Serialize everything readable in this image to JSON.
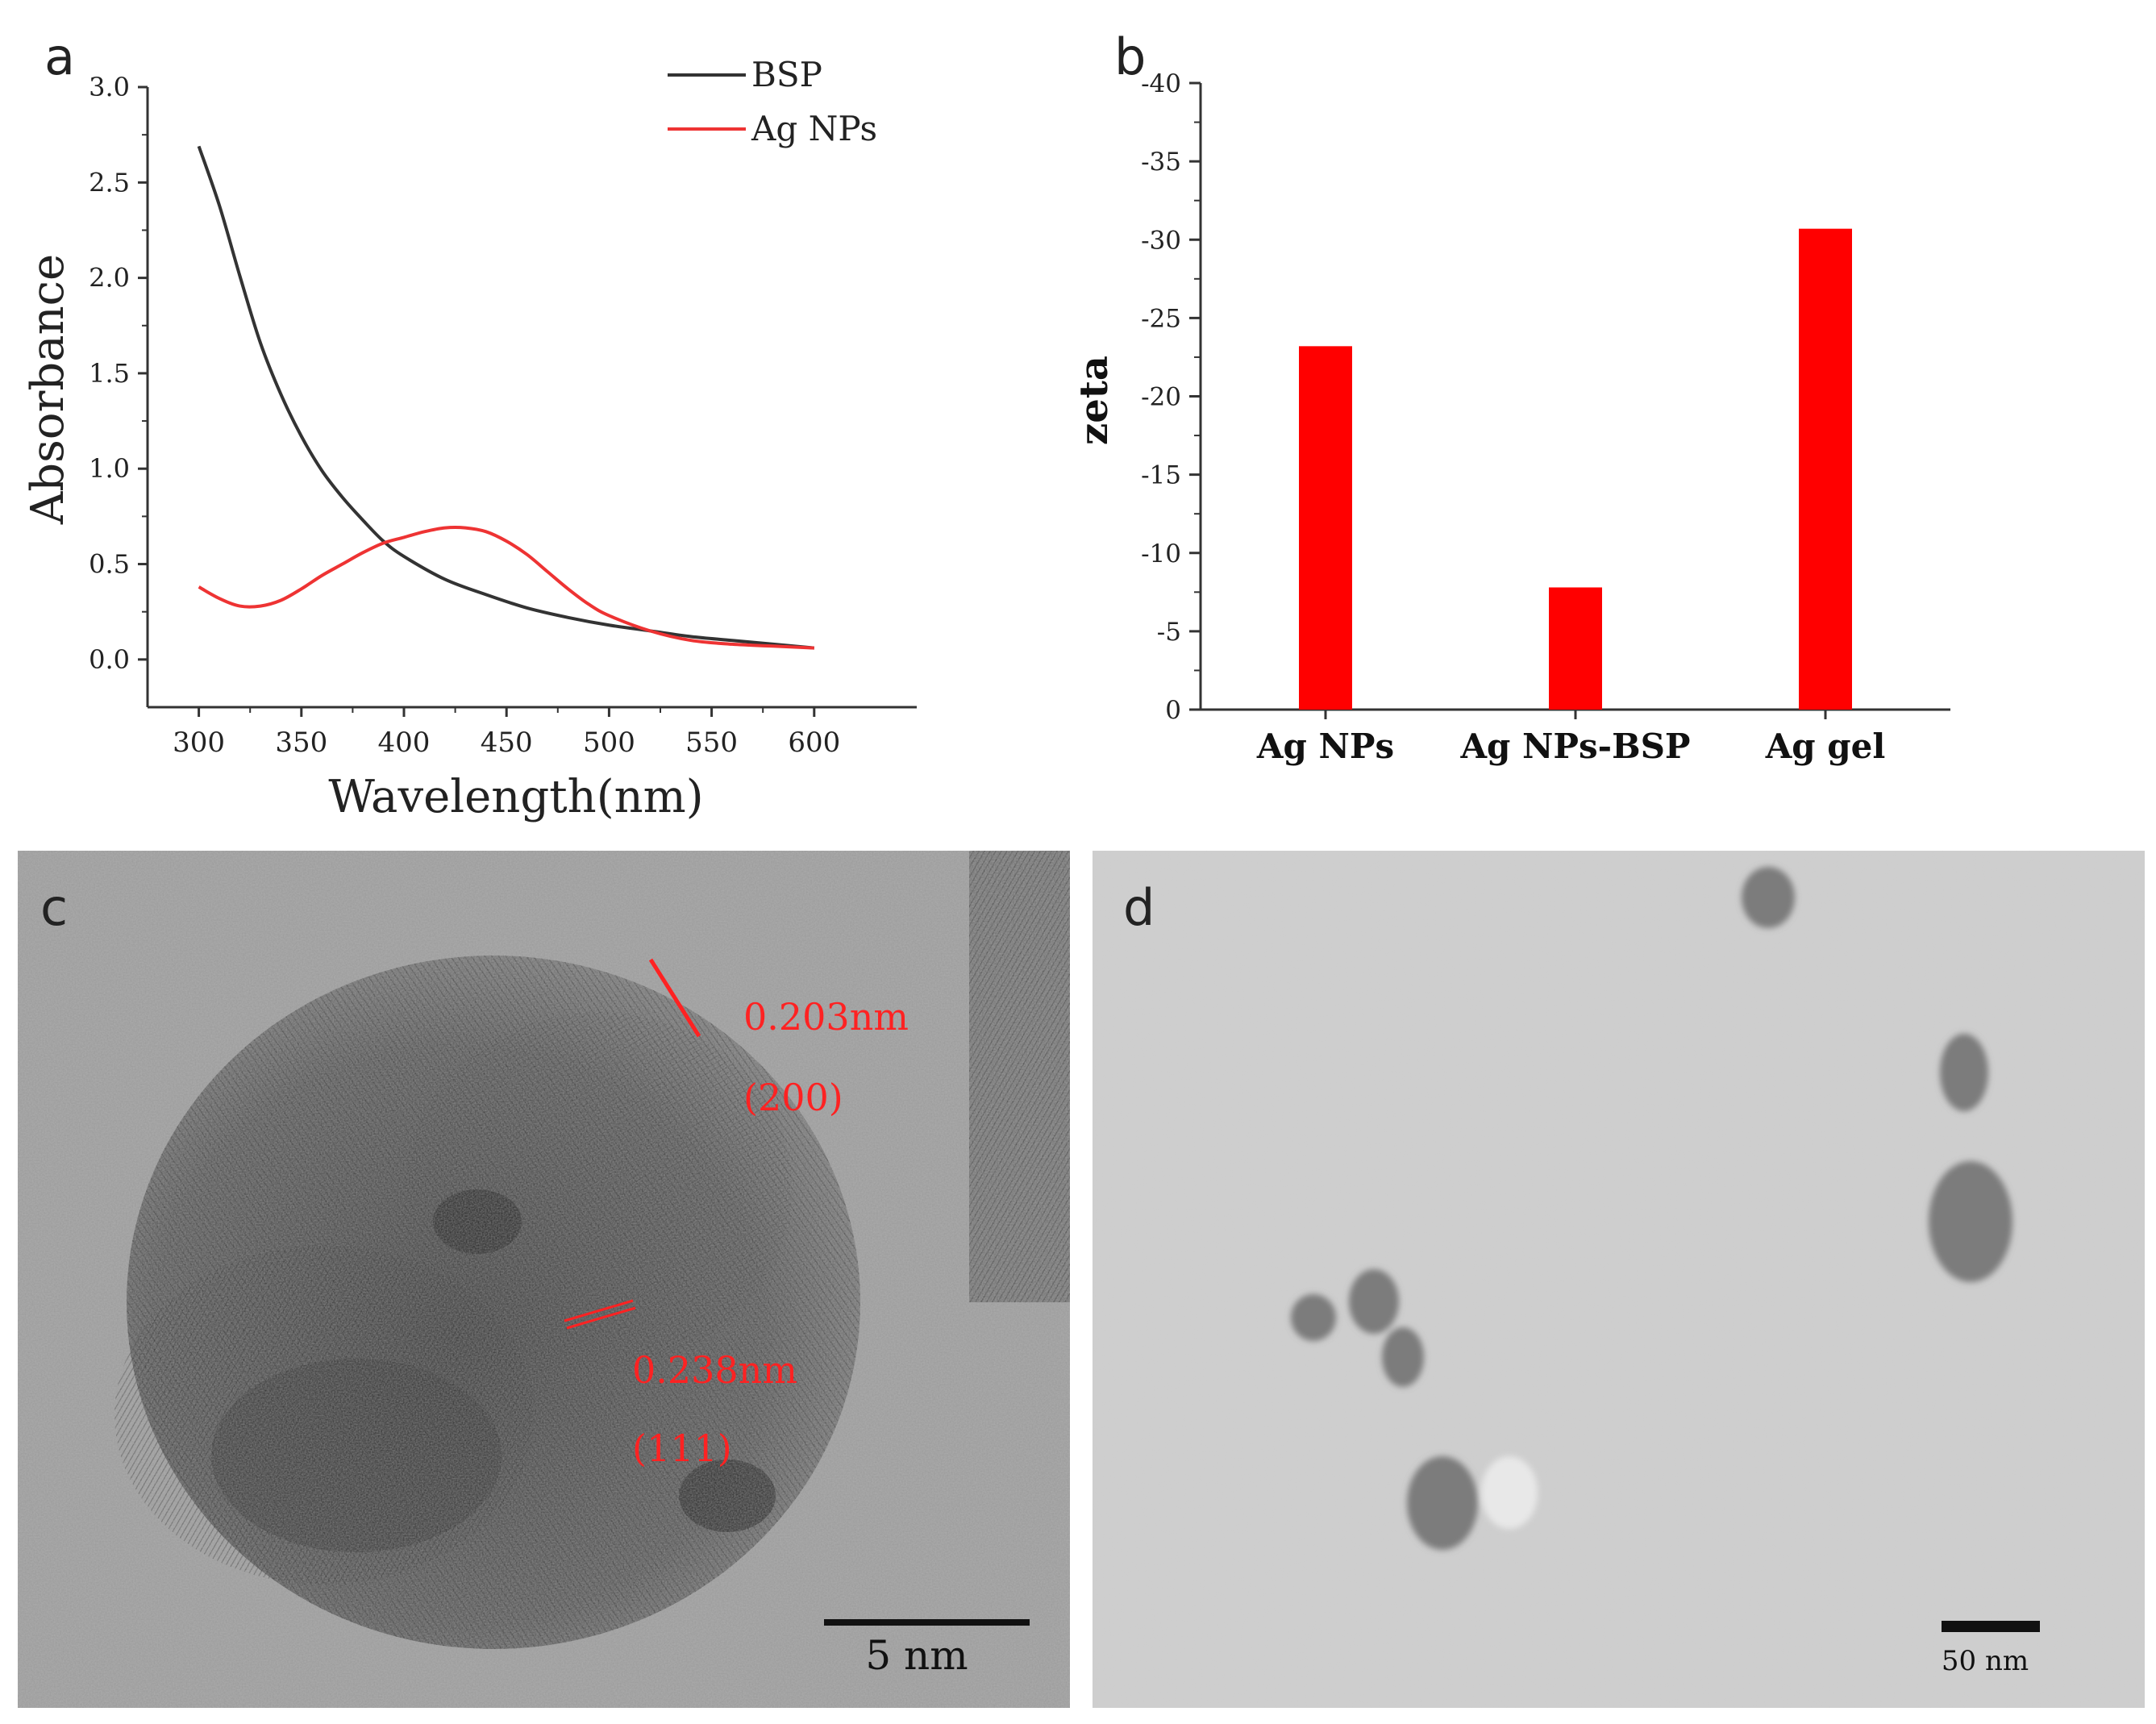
{
  "panels": [
    {
      "id": "a",
      "label": "a"
    },
    {
      "id": "b",
      "label": "b"
    },
    {
      "id": "c",
      "label": "c"
    },
    {
      "id": "d",
      "label": "d"
    }
  ],
  "chart_data": [
    {
      "type": "line",
      "panel": "a",
      "xlabel": "Wavelength(nm)",
      "ylabel": "Absorbance",
      "xlim": [
        275,
        650
      ],
      "ylim": [
        -0.25,
        3.0
      ],
      "xticks": [
        300,
        350,
        400,
        450,
        500,
        550,
        600
      ],
      "xtick_labels": [
        "300",
        "350",
        "400",
        "450",
        "500",
        "550",
        "600"
      ],
      "yticks": [
        0.0,
        0.5,
        1.0,
        1.5,
        2.0,
        2.5,
        3.0
      ],
      "ytick_labels": [
        "0.0",
        "0.5",
        "1.0",
        "1.5",
        "2.0",
        "2.5",
        "3.0"
      ],
      "legend_position": "top-right",
      "series": [
        {
          "name": "BSP",
          "color": "#333333",
          "x": [
            300,
            310,
            320,
            330,
            340,
            350,
            360,
            370,
            380,
            390,
            400,
            420,
            440,
            460,
            480,
            500,
            520,
            540,
            560,
            580,
            600
          ],
          "y": [
            2.69,
            2.38,
            2.01,
            1.66,
            1.39,
            1.17,
            0.99,
            0.85,
            0.73,
            0.62,
            0.54,
            0.42,
            0.34,
            0.27,
            0.22,
            0.18,
            0.15,
            0.12,
            0.1,
            0.08,
            0.06
          ]
        },
        {
          "name": "Ag NPs",
          "color": "#ee3333",
          "x": [
            300,
            310,
            320,
            330,
            340,
            350,
            360,
            370,
            380,
            390,
            400,
            410,
            420,
            430,
            440,
            450,
            460,
            470,
            480,
            490,
            500,
            520,
            540,
            560,
            580,
            600
          ],
          "y": [
            0.38,
            0.32,
            0.28,
            0.28,
            0.31,
            0.37,
            0.44,
            0.5,
            0.56,
            0.61,
            0.64,
            0.67,
            0.69,
            0.69,
            0.67,
            0.62,
            0.55,
            0.46,
            0.37,
            0.29,
            0.23,
            0.15,
            0.1,
            0.08,
            0.07,
            0.06
          ]
        }
      ]
    },
    {
      "type": "bar",
      "panel": "b",
      "ylabel": "zeta",
      "categories": [
        "Ag NPs",
        "Ag NPs-BSP",
        "Ag gel"
      ],
      "values": [
        -23.2,
        -7.8,
        -30.7
      ],
      "bar_color": "#ff0000",
      "ylim": [
        0,
        -40
      ],
      "yticks": [
        0,
        -5,
        -10,
        -15,
        -20,
        -25,
        -30,
        -35,
        -40
      ],
      "ytick_labels": [
        "0",
        "-5",
        "-10",
        "-15",
        "-20",
        "-25",
        "-30",
        "-35",
        "-40"
      ]
    }
  ],
  "images": {
    "c": {
      "annotations": [
        {
          "text": "0.203nm",
          "color": "#ff2222"
        },
        {
          "text": "(200)",
          "color": "#ff2222"
        },
        {
          "text": "0.238nm",
          "color": "#ff2222"
        },
        {
          "text": "(111)",
          "color": "#ff2222"
        }
      ],
      "scale_bar_label": "5 nm"
    },
    "d": {
      "scale_bar_label": "50 nm"
    }
  }
}
